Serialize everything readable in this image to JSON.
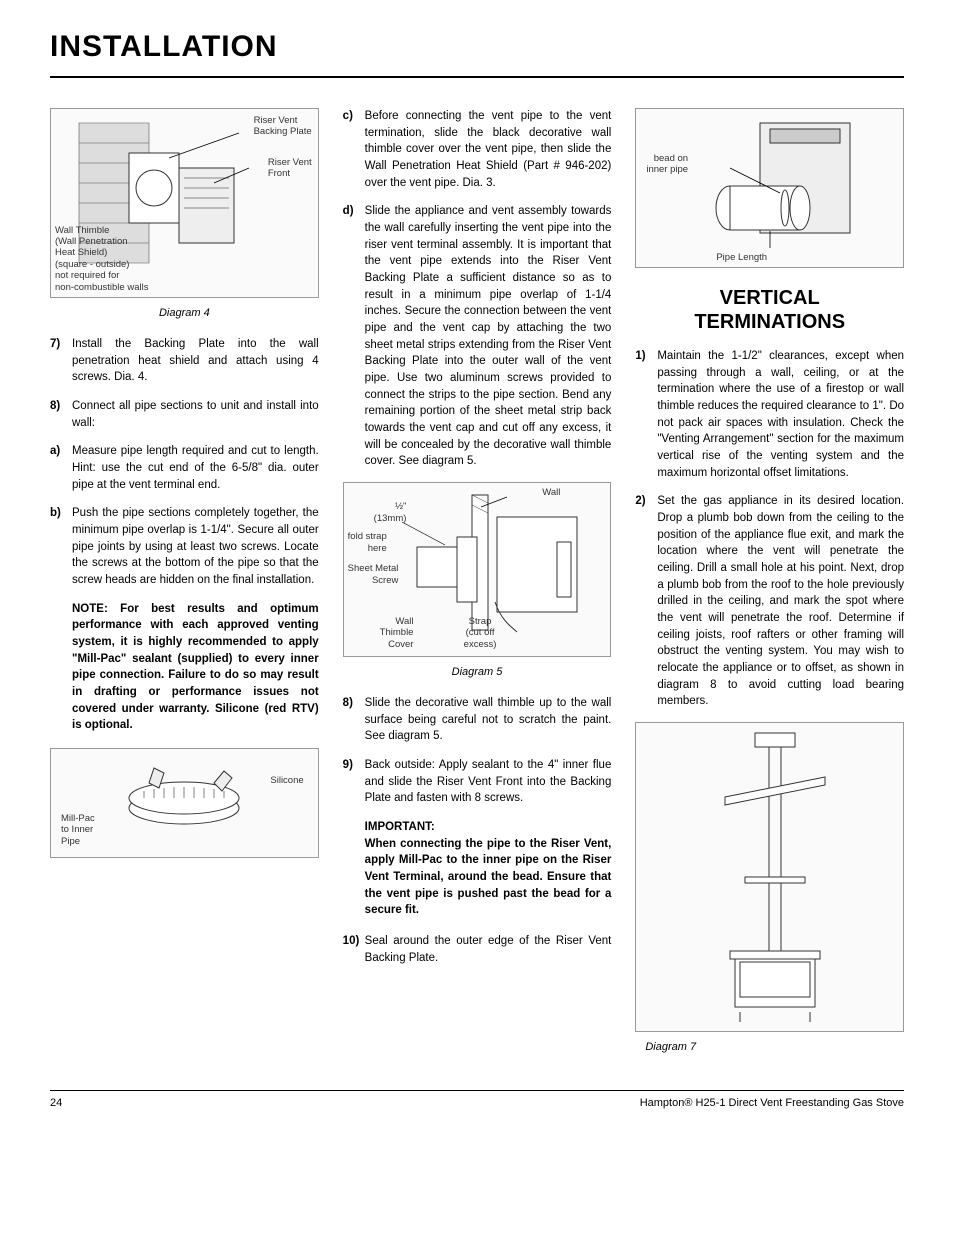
{
  "page": {
    "title": "INSTALLATION",
    "number": "24",
    "product": "Hampton® H25-1 Direct Vent Freestanding Gas Stove"
  },
  "col1": {
    "diagram4": {
      "caption": "Diagram 4",
      "labels": {
        "riser_backing": "Riser Vent\nBacking Plate",
        "riser_front": "Riser Vent\nFront",
        "wall_thimble": "Wall Thimble\n(Wall Penetration\nHeat Shield)\n(square - outside)\nnot required for\nnon-combustible walls"
      }
    },
    "item7": {
      "marker": "7)",
      "text": "Install the Backing Plate into the wall penetration heat shield and attach using 4 screws. Dia. 4."
    },
    "item8": {
      "marker": "8)",
      "text": "Connect all pipe sections to unit and install into wall:"
    },
    "item_a": {
      "marker": "a)",
      "text": "Measure pipe length required and cut to length. Hint: use the cut end of the 6-5/8\" dia. outer pipe at the vent terminal end."
    },
    "item_b": {
      "marker": "b)",
      "text": "Push the pipe sections completely together, the minimum pipe overlap is 1-1/4\". Secure all outer pipe joints by using at least two screws. Locate the screws at the bottom of the pipe so that the screw heads are hidden on the final installation."
    },
    "note": "NOTE: For best results and optimum performance with each approved venting system, it is highly recommended to apply \"Mill-Pac\" sealant (supplied) to every inner pipe connection. Failure to do so may result in drafting or performance issues not covered under warranty. Silicone (red RTV) is optional.",
    "millpac_diag": {
      "labels": {
        "millpac": "Mill-Pac\nto Inner\nPipe",
        "silicone": "Silicone"
      }
    }
  },
  "col2": {
    "item_c": {
      "marker": "c)",
      "text": "Before connecting the vent pipe to the vent termination, slide the black decorative wall thimble cover over the vent pipe, then slide the Wall Penetration Heat Shield (Part # 946-202) over the vent pipe. Dia. 3."
    },
    "item_d": {
      "marker": "d)",
      "text": "Slide the appliance and vent assembly towards the wall carefully inserting the vent pipe into the riser vent terminal assembly. It is important that the vent pipe extends into the Riser Vent Backing Plate a sufficient distance so as to result in a minimum pipe overlap of 1-1/4 inches. Secure the connection between the vent pipe and the vent cap by attaching the two sheet metal strips extending from the Riser Vent Backing Plate into the outer wall of the vent pipe. Use two aluminum screws provided to connect the strips to the pipe section. Bend any remaining portion of the sheet metal strip back towards the vent cap and cut off any excess, it will be concealed by the decorative wall thimble cover. See diagram 5."
    },
    "diagram5": {
      "caption": "Diagram 5",
      "labels": {
        "wall": "Wall",
        "half_inch": "½\"\n(13mm)",
        "fold_strap": "fold strap\nhere",
        "sheet_screw": "Sheet Metal\nScrew",
        "wall_thimble_cover": "Wall\nThimble\nCover",
        "strap": "Strap\n(cut off\nexcess)"
      }
    },
    "item8b": {
      "marker": "8)",
      "text": "Slide the decorative wall thimble up to the wall surface being careful not to scratch the paint.  See diagram 5."
    },
    "item9": {
      "marker": "9)",
      "text": "Back outside: Apply sealant to the 4\" inner flue and slide the Riser Vent Front into the Backing Plate and fasten with 8 screws."
    },
    "important": {
      "label": "IMPORTANT:",
      "body": "When connecting the pipe to the Riser Vent, apply Mill-Pac to the inner pipe on the Riser Vent Terminal, around the bead. Ensure that the vent pipe is pushed past the bead for a secure fit."
    },
    "item10": {
      "marker": "10)",
      "text": "Seal around the outer edge of the Riser Vent Backing Plate."
    }
  },
  "col3": {
    "bead_diag": {
      "labels": {
        "bead": "bead on\ninner pipe",
        "pipe_len": "Pipe Length"
      }
    },
    "heading": "VERTICAL\nTERMINATIONS",
    "item1": {
      "marker": "1)",
      "text": "Maintain the 1-1/2\" clearances, except when passing through a wall, ceiling, or at the termination where the use of a firestop or wall thimble reduces the required clearance to 1\". Do not pack air spaces with insulation. Check the \"Venting Arrangement\" section for the maximum vertical rise of the venting system and the maximum horizontal offset limitations."
    },
    "item2": {
      "marker": "2)",
      "text": "Set the gas appliance in its desired location. Drop a plumb bob down from the ceiling to the position of the appliance flue exit, and mark the location where the vent will penetrate the ceiling. Drill a small hole at his point. Next, drop a plumb bob from the roof to the hole previously drilled in the ceiling, and mark the spot where the vent will penetrate the roof. Determine if ceiling joists, roof rafters or other framing will obstruct the venting system. You may wish to relocate the appliance or to offset, as shown in diagram 8 to avoid cutting load bearing members."
    },
    "diagram7": {
      "caption": "Diagram 7"
    }
  }
}
